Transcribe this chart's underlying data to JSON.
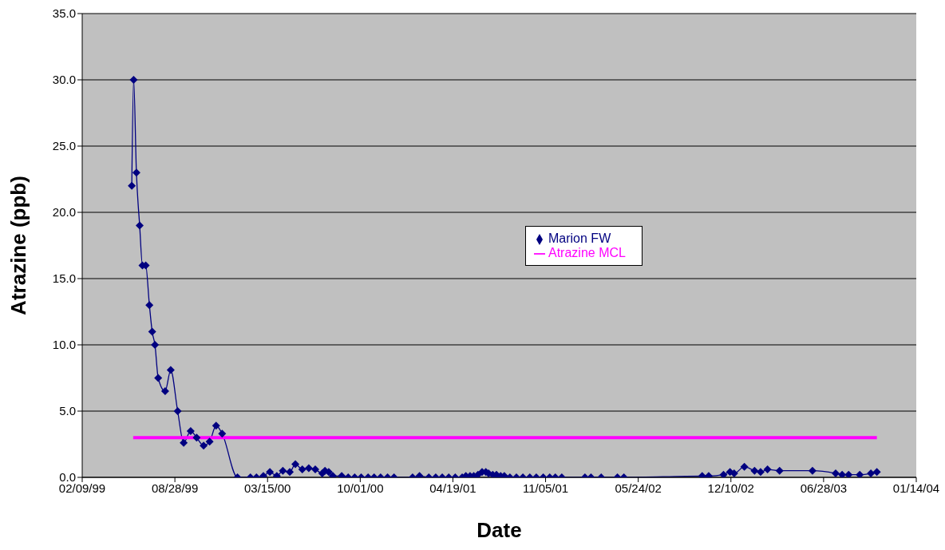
{
  "chart_data": {
    "type": "line",
    "xlabel": "Date",
    "ylabel": "Atrazine (ppb)",
    "xlim": [
      "1999-02-09",
      "2004-01-14"
    ],
    "xticks": [
      {
        "value": "1999-02-09",
        "label": "02/09/99"
      },
      {
        "value": "1999-08-28",
        "label": "08/28/99"
      },
      {
        "value": "2000-03-15",
        "label": "03/15/00"
      },
      {
        "value": "2000-10-01",
        "label": "10/01/00"
      },
      {
        "value": "2001-04-19",
        "label": "04/19/01"
      },
      {
        "value": "2001-11-05",
        "label": "11/05/01"
      },
      {
        "value": "2002-05-24",
        "label": "05/24/02"
      },
      {
        "value": "2002-12-10",
        "label": "12/10/02"
      },
      {
        "value": "2003-06-28",
        "label": "06/28/03"
      },
      {
        "value": "2004-01-14",
        "label": "01/14/04"
      }
    ],
    "ylim": [
      0,
      35
    ],
    "yticks": [
      {
        "value": 0,
        "label": "0.0"
      },
      {
        "value": 5,
        "label": "5.0"
      },
      {
        "value": 10,
        "label": "10.0"
      },
      {
        "value": 15,
        "label": "15.0"
      },
      {
        "value": 20,
        "label": "20.0"
      },
      {
        "value": 25,
        "label": "25.0"
      },
      {
        "value": 30,
        "label": "30.0"
      },
      {
        "value": 35,
        "label": "35.0"
      }
    ],
    "grid": "y",
    "legend": "center",
    "series": [
      {
        "name": "Marion FW",
        "color": "#000080",
        "marker": "diamond",
        "x": [
          "1999-05-27",
          "1999-05-31",
          "1999-06-06",
          "1999-06-13",
          "1999-06-19",
          "1999-06-26",
          "1999-07-04",
          "1999-07-10",
          "1999-07-16",
          "1999-07-23",
          "1999-08-07",
          "1999-08-19",
          "1999-09-03",
          "1999-09-16",
          "1999-10-01",
          "1999-10-14",
          "1999-10-29",
          "1999-11-11",
          "1999-11-25",
          "1999-12-08",
          "2000-01-10",
          "2000-02-07",
          "2000-02-20",
          "2000-03-06",
          "2000-03-20",
          "2000-04-04",
          "2000-04-17",
          "2000-05-02",
          "2000-05-14",
          "2000-05-29",
          "2000-06-12",
          "2000-06-26",
          "2000-07-11",
          "2000-07-17",
          "2000-07-25",
          "2000-08-03",
          "2000-08-22",
          "2000-09-05",
          "2000-09-19",
          "2000-10-03",
          "2000-10-18",
          "2000-10-31",
          "2000-11-14",
          "2000-11-29",
          "2000-12-13",
          "2001-01-22",
          "2001-02-06",
          "2001-02-26",
          "2001-03-13",
          "2001-03-27",
          "2001-04-10",
          "2001-04-24",
          "2001-05-09",
          "2001-05-17",
          "2001-05-26",
          "2001-06-03",
          "2001-06-12",
          "2001-06-21",
          "2001-06-29",
          "2001-07-05",
          "2001-07-14",
          "2001-07-22",
          "2001-07-31",
          "2001-08-08",
          "2001-08-20",
          "2001-09-03",
          "2001-09-17",
          "2001-10-02",
          "2001-10-16",
          "2001-10-31",
          "2001-11-14",
          "2001-11-26",
          "2001-12-10",
          "2002-01-29",
          "2002-02-11",
          "2002-03-05",
          "2002-04-09",
          "2002-04-23",
          "2002-10-09",
          "2002-10-23",
          "2002-11-24",
          "2002-12-08",
          "2002-12-17",
          "2003-01-08",
          "2003-01-30",
          "2003-02-12",
          "2003-02-27",
          "2003-03-25",
          "2003-06-04",
          "2003-07-24",
          "2003-08-07",
          "2003-08-21",
          "2003-09-14",
          "2003-10-08",
          "2003-10-21"
        ],
        "values": [
          22.0,
          30.0,
          23.0,
          19.0,
          16.0,
          16.0,
          13.0,
          11.0,
          10.0,
          7.5,
          6.5,
          8.1,
          5.0,
          2.6,
          3.5,
          3.0,
          2.4,
          2.7,
          3.9,
          3.3,
          0.0,
          0.0,
          0.0,
          0.1,
          0.4,
          0.1,
          0.5,
          0.4,
          1.0,
          0.6,
          0.7,
          0.6,
          0.3,
          0.5,
          0.4,
          0.1,
          0.1,
          0.0,
          0.0,
          0.0,
          0.0,
          0.0,
          0.0,
          0.0,
          0.0,
          0.0,
          0.1,
          0.0,
          0.0,
          0.0,
          0.0,
          0.0,
          0.0,
          0.1,
          0.1,
          0.1,
          0.2,
          0.4,
          0.4,
          0.3,
          0.2,
          0.2,
          0.1,
          0.1,
          0.0,
          0.0,
          0.0,
          0.0,
          0.0,
          0.0,
          0.0,
          0.0,
          0.0,
          0.0,
          0.0,
          0.0,
          0.0,
          0.0,
          0.1,
          0.1,
          0.2,
          0.4,
          0.3,
          0.8,
          0.5,
          0.4,
          0.6,
          0.5,
          0.5,
          0.3,
          0.2,
          0.2,
          0.2,
          0.3,
          0.4
        ]
      },
      {
        "name": "Atrazine MCL",
        "color": "#ff00ff",
        "marker": "none",
        "x": [
          "1999-05-30",
          "2003-10-21"
        ],
        "values": [
          3.0,
          3.0
        ]
      }
    ]
  }
}
